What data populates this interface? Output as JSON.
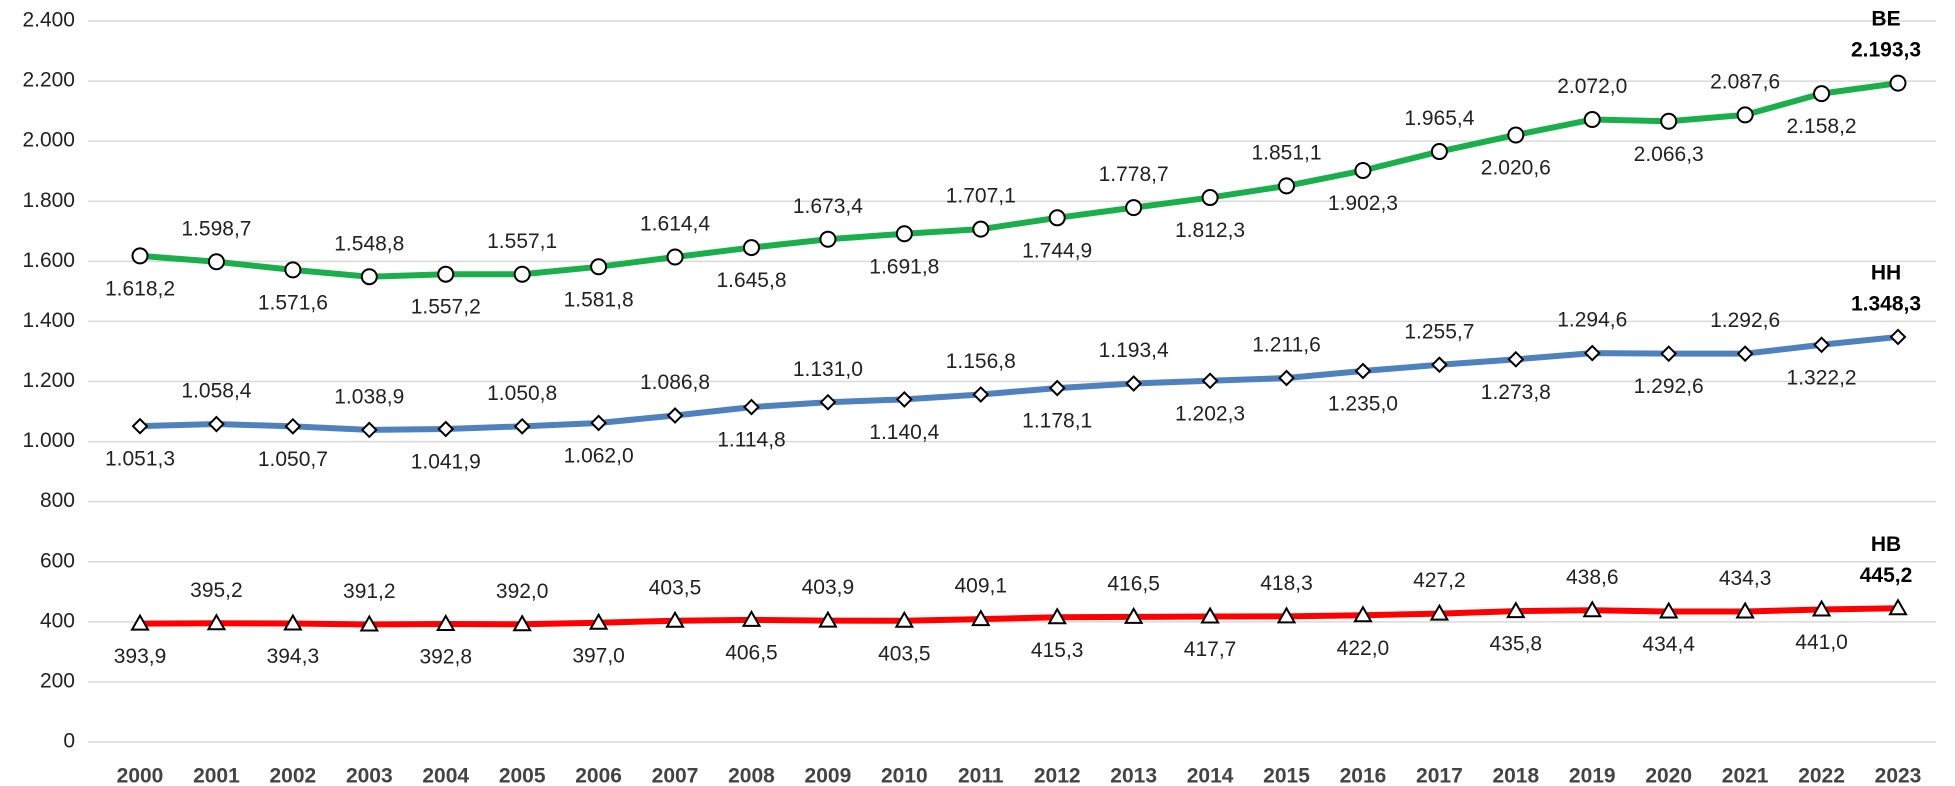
{
  "chart_data": {
    "type": "line",
    "categories": [
      "2000",
      "2001",
      "2002",
      "2003",
      "2004",
      "2005",
      "2006",
      "2007",
      "2008",
      "2009",
      "2010",
      "2011",
      "2012",
      "2013",
      "2014",
      "2015",
      "2016",
      "2017",
      "2018",
      "2019",
      "2020",
      "2021",
      "2022",
      "2023"
    ],
    "series": [
      {
        "name": "BE",
        "color": "#1aaf4b",
        "marker": "circle",
        "values": [
          1618.2,
          1598.7,
          1571.6,
          1548.8,
          1557.2,
          1557.1,
          1581.8,
          1614.4,
          1645.8,
          1673.4,
          1691.8,
          1707.1,
          1744.9,
          1778.7,
          1812.3,
          1851.1,
          1902.3,
          1965.4,
          2020.6,
          2072.0,
          2066.3,
          2087.6,
          2158.2,
          2193.3
        ],
        "value_labels": [
          "1.618,2",
          "1.598,7",
          "1.571,6",
          "1.548,8",
          "1.557,2",
          "1.557,1",
          "1.581,8",
          "1.614,4",
          "1.645,8",
          "1.673,4",
          "1.691,8",
          "1.707,1",
          "1.744,9",
          "1.778,7",
          "1.812,3",
          "1.851,1",
          "1.902,3",
          "1.965,4",
          "2.020,6",
          "2.072,0",
          "2.066,3",
          "2.087,6",
          "2.158,2",
          "2.193,3"
        ]
      },
      {
        "name": "HH",
        "color": "#4f81bd",
        "marker": "diamond",
        "values": [
          1051.3,
          1058.4,
          1050.7,
          1038.9,
          1041.9,
          1050.8,
          1062.0,
          1086.8,
          1114.8,
          1131.0,
          1140.4,
          1156.8,
          1178.1,
          1193.4,
          1202.3,
          1211.6,
          1235.0,
          1255.7,
          1273.8,
          1294.6,
          1292.6,
          1292.6,
          1322.2,
          1348.3
        ],
        "value_labels": [
          "1.051,3",
          "1.058,4",
          "1.050,7",
          "1.038,9",
          "1.041,9",
          "1.050,8",
          "1.062,0",
          "1.086,8",
          "1.114,8",
          "1.131,0",
          "1.140,4",
          "1.156,8",
          "1.178,1",
          "1.193,4",
          "1.202,3",
          "1.211,6",
          "1.235,0",
          "1.255,7",
          "1.273,8",
          "1.294,6",
          "1.292,6",
          "1.292,6",
          "1.322,2",
          "1.348,3"
        ]
      },
      {
        "name": "HB",
        "color": "#ff0000",
        "marker": "triangle",
        "values": [
          393.9,
          395.2,
          394.3,
          391.2,
          392.8,
          392.0,
          397.0,
          403.5,
          406.5,
          403.9,
          403.5,
          409.1,
          415.3,
          416.5,
          417.7,
          418.3,
          422.0,
          427.2,
          435.8,
          438.6,
          434.4,
          434.3,
          441.0,
          445.2
        ],
        "value_labels": [
          "393,9",
          "395,2",
          "394,3",
          "391,2",
          "392,8",
          "392,0",
          "397,0",
          "403,5",
          "406,5",
          "403,9",
          "403,5",
          "409,1",
          "415,3",
          "416,5",
          "417,7",
          "418,3",
          "422,0",
          "427,2",
          "435,8",
          "438,6",
          "434,4",
          "434,3",
          "441,0",
          "445,2"
        ]
      }
    ],
    "ylim": [
      0,
      2400
    ],
    "yticks": [
      0,
      200,
      400,
      600,
      800,
      {
        "value": 1000,
        "label": "1.000"
      },
      {
        "value": 1200,
        "label": "1.200"
      },
      {
        "value": 1400,
        "label": "1.400"
      },
      {
        "value": 1600,
        "label": "1.600"
      },
      {
        "value": 1800,
        "label": "1.800"
      },
      {
        "value": 2000,
        "label": "2.000"
      },
      {
        "value": 2200,
        "label": "2.200"
      },
      {
        "value": 2400,
        "label": "2.400"
      }
    ],
    "grid": true
  }
}
